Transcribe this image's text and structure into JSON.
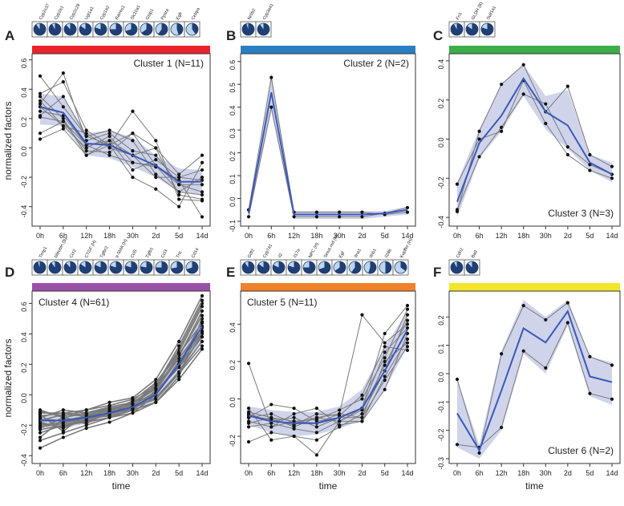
{
  "chart_data": [
    {
      "type": "line",
      "panel_letter": "A",
      "title": "Cluster 1 (N=11)",
      "title_pos": "top-right",
      "band_color": "#e8242a",
      "ylabel": "normalized factors",
      "xlabel": "",
      "ylim": [
        -0.5,
        0.62
      ],
      "yticks": [
        -0.4,
        -0.2,
        0.0,
        0.2,
        0.4,
        0.6
      ],
      "x": [
        "0h",
        "6h",
        "12h",
        "18h",
        "30h",
        "2d",
        "5d",
        "14d"
      ],
      "genes": [
        "Cyp2c37",
        "Cyp2e1",
        "Cyp2c29",
        "Ugt1a1",
        "Cyp1a2",
        "Rarres1",
        "Slc10a1",
        "Gstp1",
        "Ppara",
        "Egfr",
        "Cebpa"
      ],
      "gene_highlights": [
        "#222",
        "#222",
        "#222",
        "#222",
        "#222",
        "#222",
        "#222",
        "#222",
        "#222",
        "#222",
        "#222"
      ],
      "pie_fractions": [
        0.9,
        0.92,
        0.88,
        0.85,
        0.8,
        0.75,
        0.7,
        0.65,
        0.6,
        0.45,
        0.4
      ],
      "mean": [
        0.28,
        0.24,
        0.03,
        0.02,
        -0.05,
        -0.12,
        -0.23,
        -0.23
      ],
      "band_lower": [
        0.16,
        0.15,
        -0.05,
        -0.07,
        -0.13,
        -0.2,
        -0.3,
        -0.32
      ],
      "band_upper": [
        0.37,
        0.35,
        0.1,
        0.12,
        0.07,
        -0.05,
        -0.14,
        -0.15
      ],
      "series": [
        [
          0.49,
          0.28,
          0.08,
          0.02,
          0.25,
          0.05,
          -0.35,
          -0.36
        ],
        [
          0.37,
          0.45,
          0.12,
          0.02,
          0.1,
          -0.12,
          -0.25,
          -0.3
        ],
        [
          0.35,
          0.2,
          -0.05,
          0.05,
          -0.05,
          -0.2,
          -0.2,
          -0.22
        ],
        [
          0.3,
          0.51,
          0.05,
          0.1,
          -0.02,
          -0.05,
          -0.25,
          -0.25
        ],
        [
          0.28,
          0.15,
          0.0,
          0.08,
          -0.1,
          -0.12,
          -0.3,
          -0.2
        ],
        [
          0.25,
          0.22,
          0.02,
          -0.05,
          -0.1,
          -0.13,
          -0.22,
          -0.47
        ],
        [
          0.22,
          0.35,
          0.08,
          0.12,
          0.05,
          -0.18,
          -0.3,
          -0.32
        ],
        [
          0.21,
          0.18,
          -0.02,
          -0.03,
          0.1,
          0.0,
          -0.32,
          -0.35
        ],
        [
          0.1,
          0.18,
          0.02,
          0.05,
          -0.15,
          -0.08,
          -0.2,
          -0.15
        ],
        [
          0.06,
          0.13,
          -0.05,
          0.02,
          -0.2,
          -0.28,
          -0.4,
          -0.1
        ],
        [
          0.32,
          0.15,
          0.1,
          0.0,
          -0.05,
          0.0,
          -0.18,
          -0.05
        ]
      ]
    },
    {
      "type": "line",
      "panel_letter": "B",
      "title": "Cluster 2 (N=2)",
      "title_pos": "top-right",
      "band_color": "#2a7fc0",
      "ylabel": "",
      "xlabel": "",
      "ylim": [
        -0.1,
        0.62
      ],
      "yticks": [
        -0.1,
        0.0,
        0.1,
        0.2,
        0.3,
        0.4,
        0.5,
        0.6
      ],
      "x": [
        "0h",
        "6h",
        "12h",
        "18h",
        "30h",
        "2d",
        "5d",
        "14d"
      ],
      "genes": [
        "Nr0b2",
        "Cyp3a41"
      ],
      "gene_highlights": [
        "#222",
        "#222"
      ],
      "pie_fractions": [
        0.95,
        0.9
      ],
      "mean": [
        -0.065,
        0.465,
        -0.07,
        -0.07,
        -0.07,
        -0.07,
        -0.065,
        -0.05
      ],
      "band_lower": [
        -0.09,
        0.38,
        -0.09,
        -0.09,
        -0.09,
        -0.09,
        -0.08,
        -0.07
      ],
      "band_upper": [
        -0.05,
        0.55,
        -0.055,
        -0.055,
        -0.055,
        -0.055,
        -0.055,
        -0.035
      ],
      "series": [
        [
          -0.05,
          0.53,
          -0.06,
          -0.06,
          -0.06,
          -0.06,
          -0.07,
          -0.06
        ],
        [
          -0.08,
          0.4,
          -0.08,
          -0.08,
          -0.08,
          -0.08,
          -0.065,
          -0.04
        ]
      ]
    },
    {
      "type": "line",
      "panel_letter": "C",
      "title": "Cluster 3 (N=3)",
      "title_pos": "bottom-right",
      "band_color": "#3bad49",
      "ylabel": "",
      "xlabel": "",
      "ylim": [
        -0.42,
        0.42
      ],
      "yticks": [
        -0.4,
        -0.2,
        0.0,
        0.2,
        0.4
      ],
      "x": [
        "0h",
        "6h",
        "12h",
        "18h",
        "30h",
        "2d",
        "5d",
        "14d"
      ],
      "genes": [
        "Fn1",
        "GLDH (B)",
        "Sult1a1"
      ],
      "gene_highlights": [
        "#222",
        "#d02020",
        "#222"
      ],
      "pie_fractions": [
        0.92,
        0.85,
        0.8
      ],
      "mean": [
        -0.32,
        -0.02,
        0.12,
        0.31,
        0.14,
        0.07,
        -0.12,
        -0.18
      ],
      "band_lower": [
        -0.4,
        -0.1,
        0.04,
        0.22,
        0.05,
        -0.05,
        -0.16,
        -0.22
      ],
      "band_upper": [
        -0.22,
        0.05,
        0.28,
        0.38,
        0.22,
        0.25,
        -0.08,
        -0.12
      ],
      "series": [
        [
          -0.37,
          0.04,
          0.28,
          0.38,
          0.14,
          0.27,
          -0.08,
          -0.14
        ],
        [
          -0.36,
          -0.09,
          0.06,
          0.23,
          0.18,
          -0.04,
          -0.13,
          -0.18
        ],
        [
          -0.23,
          0.0,
          0.04,
          0.3,
          0.08,
          -0.08,
          -0.16,
          -0.2
        ]
      ]
    },
    {
      "type": "line",
      "panel_letter": "D",
      "title": "Cluster 4 (N=61)",
      "title_pos": "top-left",
      "band_color": "#9b50a8",
      "ylabel": "normalized factors",
      "xlabel": "time",
      "ylim": [
        -0.42,
        0.66
      ],
      "yticks": [
        -0.4,
        -0.2,
        0.0,
        0.2,
        0.4,
        0.6
      ],
      "x": [
        "0h",
        "6h",
        "12h",
        "18h",
        "30h",
        "2d",
        "5d",
        "14d"
      ],
      "genes": [
        "Timp1",
        "bilirubin (B)",
        "Ccr2",
        "CTGF (H)",
        "Tgfbr2",
        "α-SMA (H)",
        "Ccl5",
        "Tgfb1",
        "Ccl3",
        "Tnc",
        "Cd14"
      ],
      "gene_highlights": [
        "#222",
        "#d02020",
        "#222",
        "#2a8a3a",
        "#222",
        "#2a8a3a",
        "#222",
        "#222",
        "#222",
        "#222",
        "#222"
      ],
      "pie_fractions": [
        0.95,
        0.9,
        0.88,
        0.85,
        0.82,
        0.8,
        0.8,
        0.78,
        0.75,
        0.72,
        0.7
      ],
      "mean": [
        -0.17,
        -0.17,
        -0.15,
        -0.12,
        -0.08,
        0.0,
        0.2,
        0.45
      ],
      "band_lower": [
        -0.22,
        -0.22,
        -0.19,
        -0.15,
        -0.11,
        -0.05,
        0.12,
        0.35
      ],
      "band_upper": [
        -0.13,
        -0.13,
        -0.11,
        -0.08,
        -0.05,
        0.05,
        0.27,
        0.55
      ],
      "series": [
        [
          -0.2,
          -0.18,
          -0.15,
          -0.1,
          -0.05,
          0.05,
          0.25,
          0.55
        ],
        [
          -0.1,
          -0.15,
          -0.12,
          -0.08,
          -0.05,
          0.0,
          0.2,
          0.45
        ],
        [
          -0.25,
          -0.2,
          -0.18,
          -0.12,
          -0.08,
          -0.02,
          0.15,
          0.4
        ],
        [
          -0.15,
          -0.1,
          -0.12,
          -0.1,
          -0.05,
          0.05,
          0.3,
          0.6
        ],
        [
          -0.3,
          -0.25,
          -0.2,
          -0.15,
          -0.1,
          0.02,
          0.18,
          0.38
        ],
        [
          -0.18,
          -0.22,
          -0.16,
          -0.12,
          -0.1,
          -0.05,
          0.1,
          0.3
        ],
        [
          -0.12,
          -0.12,
          -0.1,
          -0.05,
          -0.02,
          0.1,
          0.35,
          0.65
        ],
        [
          -0.22,
          -0.15,
          -0.18,
          -0.15,
          -0.12,
          -0.05,
          0.12,
          0.5
        ],
        [
          -0.35,
          -0.28,
          -0.22,
          -0.18,
          -0.12,
          0.0,
          0.22,
          0.42
        ],
        [
          -0.16,
          -0.17,
          -0.14,
          -0.1,
          -0.07,
          0.02,
          0.2,
          0.48
        ],
        [
          -0.19,
          -0.21,
          -0.17,
          -0.13,
          -0.09,
          -0.02,
          0.15,
          0.35
        ],
        [
          -0.14,
          -0.12,
          -0.13,
          -0.11,
          -0.04,
          0.08,
          0.28,
          0.58
        ],
        [
          -0.21,
          -0.19,
          -0.15,
          -0.14,
          -0.1,
          0.03,
          0.24,
          0.44
        ],
        [
          -0.13,
          -0.24,
          -0.12,
          -0.09,
          -0.06,
          0.04,
          0.26,
          0.52
        ],
        [
          -0.28,
          -0.16,
          -0.19,
          -0.11,
          -0.08,
          -0.03,
          0.14,
          0.32
        ],
        [
          -0.11,
          -0.14,
          -0.1,
          -0.07,
          -0.03,
          0.06,
          0.32,
          0.62
        ],
        [
          -0.23,
          -0.2,
          -0.16,
          -0.12,
          -0.09,
          0.01,
          0.19,
          0.41
        ],
        [
          -0.17,
          -0.13,
          -0.14,
          -0.12,
          -0.06,
          0.07,
          0.27,
          0.47
        ]
      ]
    },
    {
      "type": "line",
      "panel_letter": "E",
      "title": "Cluster 5 (N=11)",
      "title_pos": "top-left",
      "band_color": "#f0822a",
      "ylabel": "",
      "xlabel": "time",
      "ylim": [
        -0.32,
        0.56
      ],
      "yticks": [
        -0.2,
        0.0,
        0.2,
        0.4
      ],
      "x": [
        "0h",
        "6h",
        "12h",
        "18h",
        "30h",
        "2d",
        "5d",
        "14d"
      ],
      "genes": [
        "Gdf2",
        "Cyp7a1",
        "Il2",
        "Il17a",
        "NPC (H)",
        "Sinus.red (H)",
        "Egf",
        "Ifna1",
        "Ifnb1",
        "Il28b",
        "Kupffer (H)"
      ],
      "gene_highlights": [
        "#222",
        "#222",
        "#222",
        "#222",
        "#2a8a3a",
        "#2a8a3a",
        "#222",
        "#222",
        "#222",
        "#222",
        "#2a8a3a"
      ],
      "pie_fractions": [
        0.9,
        0.85,
        0.82,
        0.8,
        0.75,
        0.7,
        0.65,
        0.6,
        0.55,
        0.5,
        0.35
      ],
      "mean": [
        -0.09,
        -0.12,
        -0.13,
        -0.13,
        -0.1,
        -0.05,
        0.15,
        0.37
      ],
      "band_lower": [
        -0.14,
        -0.18,
        -0.2,
        -0.19,
        -0.16,
        -0.11,
        0.05,
        0.28
      ],
      "band_upper": [
        -0.04,
        -0.06,
        -0.07,
        -0.07,
        -0.04,
        0.05,
        0.28,
        0.47
      ],
      "series": [
        [
          0.19,
          -0.15,
          -0.12,
          -0.13,
          -0.08,
          0.45,
          0.3,
          0.4
        ],
        [
          -0.05,
          -0.22,
          -0.2,
          -0.3,
          -0.12,
          -0.05,
          0.35,
          0.5
        ],
        [
          -0.1,
          -0.03,
          -0.05,
          -0.12,
          -0.1,
          -0.1,
          0.2,
          0.3
        ],
        [
          -0.13,
          -0.1,
          -0.15,
          -0.1,
          -0.12,
          -0.12,
          0.05,
          0.35
        ],
        [
          -0.23,
          -0.18,
          -0.2,
          -0.22,
          -0.15,
          -0.08,
          0.15,
          0.45
        ],
        [
          -0.08,
          -0.12,
          -0.1,
          -0.15,
          -0.1,
          -0.05,
          0.25,
          0.38
        ],
        [
          -0.1,
          -0.08,
          -0.13,
          -0.1,
          -0.08,
          -0.1,
          0.1,
          0.28
        ],
        [
          -0.07,
          -0.1,
          -0.12,
          -0.11,
          -0.06,
          0.0,
          0.22,
          0.48
        ],
        [
          -0.12,
          -0.15,
          -0.08,
          -0.05,
          -0.14,
          -0.12,
          0.12,
          0.32
        ],
        [
          -0.15,
          -0.13,
          -0.16,
          -0.18,
          -0.12,
          -0.06,
          0.18,
          0.42
        ],
        [
          -0.09,
          -0.11,
          -0.14,
          -0.08,
          -0.09,
          0.02,
          0.28,
          0.26
        ]
      ]
    },
    {
      "type": "line",
      "panel_letter": "F",
      "title": "Cluster 6 (N=2)",
      "title_pos": "bottom-right",
      "band_color": "#f2e52a",
      "ylabel": "",
      "xlabel": "time",
      "ylim": [
        -0.3,
        0.28
      ],
      "yticks": [
        -0.3,
        -0.2,
        -0.1,
        0.0,
        0.1,
        0.2
      ],
      "x": [
        "0h",
        "6h",
        "12h",
        "18h",
        "30h",
        "2d",
        "5d",
        "14d"
      ],
      "genes": [
        "Cdh2",
        "Bad"
      ],
      "gene_highlights": [
        "#222",
        "#222"
      ],
      "pie_fractions": [
        0.92,
        0.88
      ],
      "mean": [
        -0.14,
        -0.27,
        -0.06,
        0.16,
        0.11,
        0.22,
        -0.01,
        -0.03
      ],
      "band_lower": [
        -0.26,
        -0.3,
        -0.2,
        0.07,
        0.0,
        0.17,
        -0.08,
        -0.11
      ],
      "band_upper": [
        -0.02,
        -0.25,
        0.08,
        0.26,
        0.2,
        0.26,
        0.06,
        0.04
      ],
      "series": [
        [
          -0.02,
          -0.28,
          0.07,
          0.24,
          0.19,
          0.25,
          0.06,
          0.03
        ],
        [
          -0.25,
          -0.26,
          -0.19,
          0.08,
          0.02,
          0.18,
          -0.07,
          -0.09
        ]
      ]
    }
  ]
}
